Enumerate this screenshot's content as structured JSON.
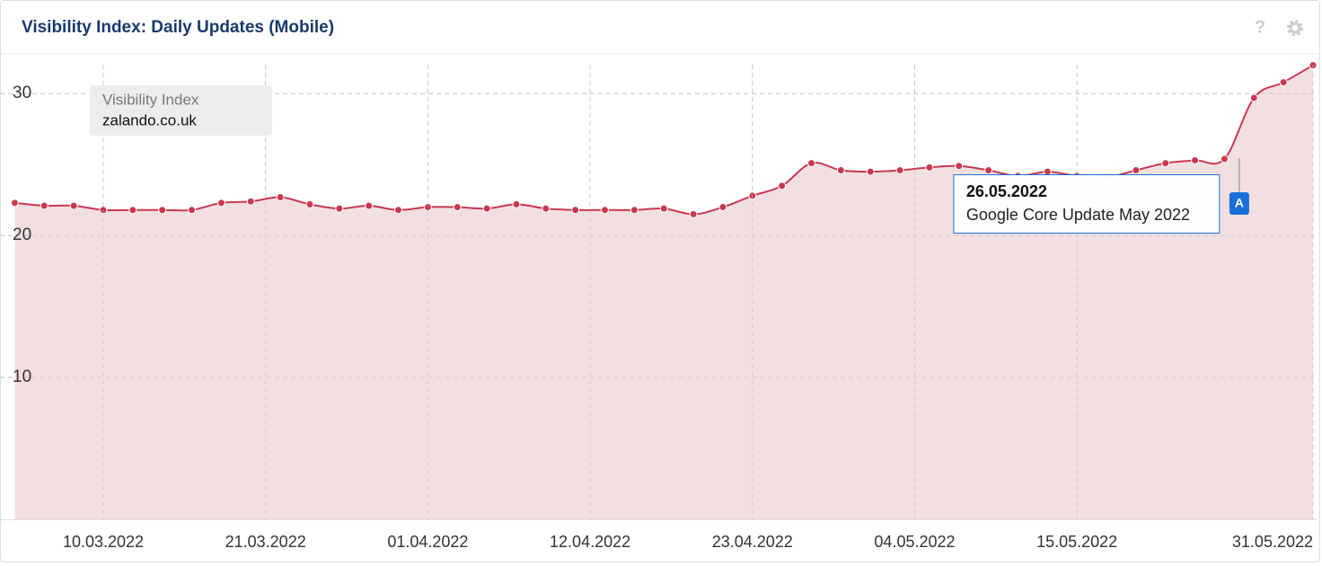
{
  "header": {
    "title": "Visibility Index: Daily Updates (Mobile)",
    "help": "?"
  },
  "chart_data": {
    "type": "line",
    "legend_title": "Visibility Index",
    "x": [
      "04.03.2022",
      "06.03.2022",
      "08.03.2022",
      "10.03.2022",
      "12.03.2022",
      "14.03.2022",
      "16.03.2022",
      "18.03.2022",
      "20.03.2022",
      "22.03.2022",
      "24.03.2022",
      "26.03.2022",
      "28.03.2022",
      "30.03.2022",
      "01.04.2022",
      "03.04.2022",
      "05.04.2022",
      "07.04.2022",
      "09.04.2022",
      "11.04.2022",
      "13.04.2022",
      "15.04.2022",
      "17.04.2022",
      "19.04.2022",
      "21.04.2022",
      "23.04.2022",
      "25.04.2022",
      "27.04.2022",
      "29.04.2022",
      "01.05.2022",
      "03.05.2022",
      "05.05.2022",
      "07.05.2022",
      "09.05.2022",
      "11.05.2022",
      "13.05.2022",
      "15.05.2022",
      "17.05.2022",
      "19.05.2022",
      "21.05.2022",
      "23.05.2022",
      "25.05.2022",
      "27.05.2022",
      "29.05.2022",
      "31.05.2022"
    ],
    "series": [
      {
        "name": "zalando.co.uk",
        "color": "#c8384f",
        "values": [
          22.3,
          22.1,
          22.1,
          21.8,
          21.8,
          21.8,
          21.8,
          22.3,
          22.4,
          22.7,
          22.2,
          21.9,
          22.1,
          21.8,
          22.0,
          22.0,
          21.9,
          22.2,
          21.9,
          21.8,
          21.8,
          21.8,
          21.9,
          21.5,
          22.0,
          22.8,
          23.5,
          25.1,
          24.6,
          24.5,
          24.6,
          24.8,
          24.9,
          24.6,
          24.2,
          24.5,
          24.2,
          24.1,
          24.6,
          25.1,
          25.3,
          25.4,
          29.7,
          30.8,
          32.0
        ]
      }
    ],
    "area_color": "#f0dde0",
    "xlim": [
      "03.03.2022",
      "31.05.2022"
    ],
    "xticks": [
      "10.03.2022",
      "21.03.2022",
      "01.04.2022",
      "12.04.2022",
      "23.04.2022",
      "04.05.2022",
      "15.05.2022",
      "31.05.2022"
    ],
    "ylim": [
      0,
      32.8
    ],
    "yticks": [
      10,
      20,
      30
    ],
    "grid": true,
    "annotations": [
      {
        "x": "26.05.2022",
        "marker": "A",
        "text": "Google Core Update May 2022"
      }
    ]
  }
}
